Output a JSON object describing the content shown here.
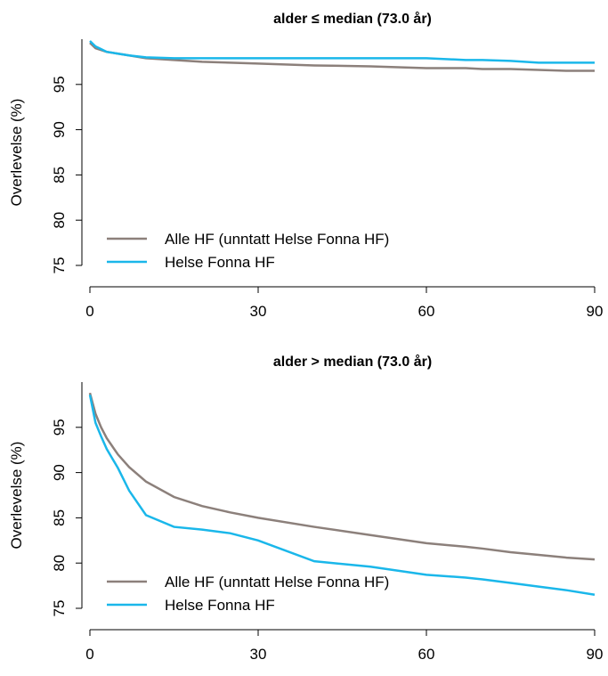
{
  "chart_data": [
    {
      "type": "line",
      "title": "alder ≤ median (73.0 år)",
      "ylabel": "Overlevelse (%)",
      "x": [
        0,
        1,
        2,
        3,
        5,
        7,
        10,
        15,
        20,
        25,
        30,
        40,
        50,
        60,
        67,
        70,
        75,
        80,
        85,
        90
      ],
      "series": [
        {
          "name": "Alle HF (unntatt Helse Fonna HF)",
          "color": "#8c807b",
          "values": [
            99.6,
            99.0,
            98.8,
            98.6,
            98.4,
            98.2,
            97.9,
            97.7,
            97.5,
            97.4,
            97.3,
            97.1,
            97.0,
            96.8,
            96.8,
            96.7,
            96.7,
            96.6,
            96.5,
            96.5
          ]
        },
        {
          "name": "Helse Fonna HF",
          "color": "#1ab7ea",
          "values": [
            99.8,
            99.2,
            98.9,
            98.6,
            98.4,
            98.2,
            98.0,
            97.9,
            97.9,
            97.9,
            97.9,
            97.9,
            97.9,
            97.9,
            97.7,
            97.7,
            97.6,
            97.4,
            97.4,
            97.4
          ]
        }
      ],
      "xlim": [
        0,
        90
      ],
      "ylim": [
        75,
        100
      ],
      "xticks": [
        0,
        30,
        60,
        90
      ],
      "yticks": [
        75,
        80,
        85,
        90,
        95
      ]
    },
    {
      "type": "line",
      "title": "alder > median (73.0 år)",
      "ylabel": "Overlevelse (%)",
      "x": [
        0,
        1,
        2,
        3,
        5,
        7,
        10,
        15,
        20,
        25,
        30,
        40,
        50,
        60,
        67,
        70,
        75,
        80,
        85,
        90
      ],
      "series": [
        {
          "name": "Alle HF (unntatt Helse Fonna HF)",
          "color": "#8c807b",
          "values": [
            98.8,
            96.5,
            95.0,
            93.8,
            92.0,
            90.6,
            89.0,
            87.3,
            86.3,
            85.6,
            85.0,
            84.0,
            83.1,
            82.2,
            81.8,
            81.6,
            81.2,
            80.9,
            80.6,
            80.4
          ]
        },
        {
          "name": "Helse Fonna HF",
          "color": "#1ab7ea",
          "values": [
            98.6,
            95.5,
            94.0,
            92.6,
            90.5,
            88.0,
            85.3,
            84.0,
            83.7,
            83.3,
            82.5,
            80.2,
            79.6,
            78.7,
            78.4,
            78.2,
            77.8,
            77.4,
            77.0,
            76.5
          ]
        }
      ],
      "xlim": [
        0,
        90
      ],
      "ylim": [
        75,
        100
      ],
      "xticks": [
        0,
        30,
        60,
        90
      ],
      "yticks": [
        75,
        80,
        85,
        90,
        95
      ]
    }
  ]
}
